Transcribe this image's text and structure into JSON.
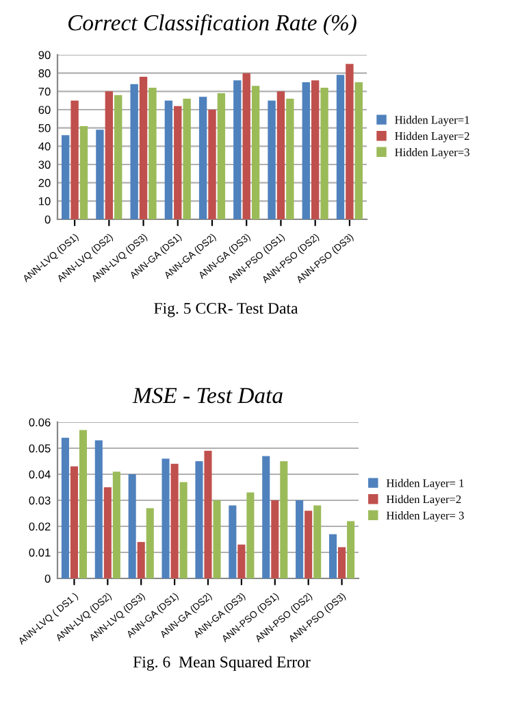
{
  "chart_data": [
    {
      "type": "bar",
      "title": "Correct Classification Rate (%)",
      "categories": [
        "ANN-LVQ (DS1)",
        "ANN-LVQ (DS2)",
        "ANN-LVQ (DS3)",
        "ANN-GA (DS1)",
        "ANN-GA (DS2)",
        "ANN-GA (DS3)",
        "ANN-PSO (DS1)",
        "ANN-PSO (DS2)",
        "ANN-PSO (DS3)"
      ],
      "series": [
        {
          "name": "Hidden Layer=1",
          "color": "#4f81bd",
          "values": [
            46,
            49,
            74,
            65,
            67,
            76,
            65,
            75,
            79
          ]
        },
        {
          "name": "Hidden Layer=2",
          "color": "#c0504d",
          "values": [
            65,
            70,
            78,
            62,
            60,
            80,
            70,
            76,
            85
          ]
        },
        {
          "name": "Hidden Layer=3",
          "color": "#9bbb59",
          "values": [
            51,
            68,
            72,
            66,
            69,
            73,
            66,
            72,
            75
          ]
        }
      ],
      "ylim": [
        0,
        90
      ],
      "yticks": [
        0,
        10,
        20,
        30,
        40,
        50,
        60,
        70,
        80,
        90
      ],
      "grid": "y",
      "legend": "right",
      "annotations": [
        "Fig. 5 CCR- Test Data"
      ]
    },
    {
      "type": "bar",
      "title": "MSE - Test Data",
      "categories": [
        "ANN-LVQ ( DS1 )",
        "ANN-LVQ (DS2)",
        "ANN-LVQ (DS3)",
        "ANN-GA (DS1)",
        "ANN-GA (DS2)",
        "ANN-GA (DS3)",
        "ANN-PSO (DS1)",
        "ANN-PSO (DS2)",
        "ANN-PSO (DS3)"
      ],
      "series": [
        {
          "name": "Hidden Layer= 1",
          "color": "#4f81bd",
          "values": [
            0.054,
            0.053,
            0.04,
            0.046,
            0.045,
            0.028,
            0.047,
            0.03,
            0.017
          ]
        },
        {
          "name": "Hidden Layer=2",
          "color": "#c0504d",
          "values": [
            0.043,
            0.035,
            0.014,
            0.044,
            0.049,
            0.013,
            0.03,
            0.026,
            0.012
          ]
        },
        {
          "name": "Hidden Layer= 3",
          "color": "#9bbb59",
          "values": [
            0.057,
            0.041,
            0.027,
            0.037,
            0.03,
            0.033,
            0.045,
            0.028,
            0.022
          ]
        }
      ],
      "ylim": [
        0,
        0.06
      ],
      "yticks": [
        0,
        0.01,
        0.02,
        0.03,
        0.04,
        0.05,
        0.06
      ],
      "grid": "y",
      "legend": "right",
      "annotations": [
        "Fig. 6  Mean Squared Error"
      ]
    }
  ]
}
